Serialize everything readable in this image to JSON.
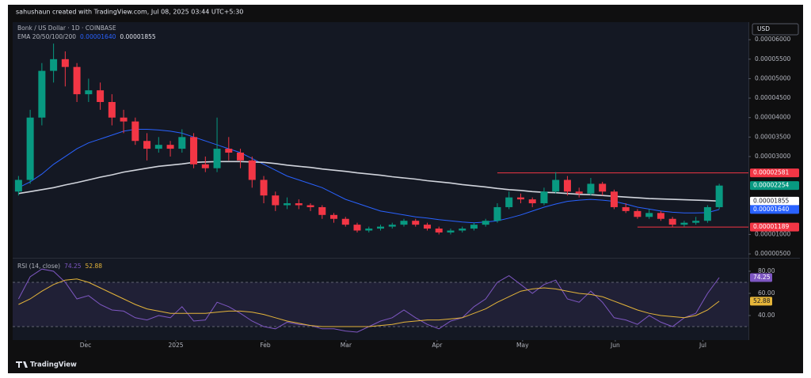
{
  "header": "sahushaun created with TradingView.com, Jul 08, 2025 03:44 UTC+5:30",
  "footer": "TradingView",
  "chart_data": {
    "type": "candlestick",
    "title": "Bonk / US Dollar · 1D · COINBASE",
    "indicator": "EMA 20/50/100/200",
    "currency": "USD",
    "up_color": "#089981",
    "down_color": "#f23645",
    "grid": false,
    "xlim": [
      -0.5,
      62.5
    ],
    "ylim": [
      4.2e-06,
      6.41e-05
    ],
    "yticks": [
      {
        "value": 6e-05,
        "label": "0.00006000"
      },
      {
        "value": 5.5e-05,
        "label": "0.00005500"
      },
      {
        "value": 5e-05,
        "label": "0.00005000"
      },
      {
        "value": 4.5e-05,
        "label": "0.00004500"
      },
      {
        "value": 4e-05,
        "label": "0.00004000"
      },
      {
        "value": 3.5e-05,
        "label": "0.00003500"
      },
      {
        "value": 3e-05,
        "label": "0.00003000"
      },
      {
        "value": 1e-05,
        "label": "0.00001000"
      },
      {
        "value": 5e-06,
        "label": "0.00000500"
      }
    ],
    "xticks": [
      {
        "value": 5.74,
        "label": "Dec"
      },
      {
        "value": 13.47,
        "label": "2025"
      },
      {
        "value": 21.13,
        "label": "Feb"
      },
      {
        "value": 28.04,
        "label": "Mar"
      },
      {
        "value": 35.84,
        "label": "Apr"
      },
      {
        "value": 43.16,
        "label": "May"
      },
      {
        "value": 51.1,
        "label": "Jun"
      },
      {
        "value": 58.6,
        "label": "Jul"
      }
    ],
    "open": [
      2.1e-05,
      2.4e-05,
      4e-05,
      5.2e-05,
      5.5e-05,
      5.3e-05,
      4.6e-05,
      4.7e-05,
      4.4e-05,
      4e-05,
      3.9e-05,
      3.4e-05,
      3.2e-05,
      3.3e-05,
      3.2e-05,
      3.5e-05,
      2.8e-05,
      2.7e-05,
      3.2e-05,
      3.1e-05,
      2.9e-05,
      2.4e-05,
      2e-05,
      1.75e-05,
      1.8e-05,
      1.75e-05,
      1.7e-05,
      1.5e-05,
      1.4e-05,
      1.25e-05,
      1.1e-05,
      1.15e-05,
      1.2e-05,
      1.25e-05,
      1.35e-05,
      1.25e-05,
      1.15e-05,
      1.05e-05,
      1.1e-05,
      1.15e-05,
      1.25e-05,
      1.35e-05,
      1.7e-05,
      1.95e-05,
      1.9e-05,
      1.8e-05,
      2.1e-05,
      2.4e-05,
      2.1e-05,
      2.05e-05,
      2.3e-05,
      2.1e-05,
      1.7e-05,
      1.6e-05,
      1.45e-05,
      1.55e-05,
      1.4e-05,
      1.25e-05,
      1.3e-05,
      1.35e-05,
      1.7e-05
    ],
    "high": [
      2.5e-05,
      4.2e-05,
      5.4e-05,
      5.9e-05,
      5.7e-05,
      5.4e-05,
      5e-05,
      4.9e-05,
      4.6e-05,
      4.2e-05,
      4e-05,
      3.6e-05,
      3.5e-05,
      3.4e-05,
      3.7e-05,
      3.6e-05,
      3e-05,
      4e-05,
      3.5e-05,
      3.2e-05,
      3e-05,
      2.5e-05,
      2.1e-05,
      1.95e-05,
      1.9e-05,
      1.8e-05,
      1.75e-05,
      1.55e-05,
      1.45e-05,
      1.3e-05,
      1.2e-05,
      1.25e-05,
      1.3e-05,
      1.4e-05,
      1.4e-05,
      1.3e-05,
      1.2e-05,
      1.15e-05,
      1.2e-05,
      1.3e-05,
      1.4e-05,
      1.8e-05,
      2.1e-05,
      2.05e-05,
      1.95e-05,
      2.2e-05,
      2.6e-05,
      2.5e-05,
      2.2e-05,
      2.45e-05,
      2.35e-05,
      2.15e-05,
      1.8e-05,
      1.65e-05,
      1.65e-05,
      1.6e-05,
      1.45e-05,
      1.35e-05,
      1.45e-05,
      1.75e-05,
      2.3e-05
    ],
    "low": [
      2e-05,
      2.3e-05,
      3.8e-05,
      4.9e-05,
      4.8e-05,
      4.4e-05,
      4.4e-05,
      4.2e-05,
      3.8e-05,
      3.6e-05,
      3.3e-05,
      2.9e-05,
      3.1e-05,
      3e-05,
      3.1e-05,
      2.7e-05,
      2.6e-05,
      2.6e-05,
      2.9e-05,
      2.7e-05,
      2.2e-05,
      1.8e-05,
      1.6e-05,
      1.65e-05,
      1.65e-05,
      1.6e-05,
      1.4e-05,
      1.3e-05,
      1.2e-05,
      1.05e-05,
      1.05e-05,
      1.1e-05,
      1.15e-05,
      1.2e-05,
      1.2e-05,
      1.1e-05,
      1e-05,
      1e-05,
      1.05e-05,
      1.1e-05,
      1.2e-05,
      1.3e-05,
      1.65e-05,
      1.8e-05,
      1.7e-05,
      1.75e-05,
      2.05e-05,
      2e-05,
      1.95e-05,
      2e-05,
      2e-05,
      1.65e-05,
      1.55e-05,
      1.4e-05,
      1.4e-05,
      1.35e-05,
      1.19e-05,
      1.2e-05,
      1.25e-05,
      1.3e-05,
      1.65e-05
    ],
    "close": [
      2.4e-05,
      4e-05,
      5.2e-05,
      5.5e-05,
      5.3e-05,
      4.6e-05,
      4.7e-05,
      4.4e-05,
      4e-05,
      3.9e-05,
      3.4e-05,
      3.2e-05,
      3.3e-05,
      3.2e-05,
      3.5e-05,
      2.8e-05,
      2.7e-05,
      3.2e-05,
      3.1e-05,
      2.9e-05,
      2.4e-05,
      2e-05,
      1.75e-05,
      1.8e-05,
      1.75e-05,
      1.7e-05,
      1.5e-05,
      1.4e-05,
      1.25e-05,
      1.1e-05,
      1.15e-05,
      1.2e-05,
      1.25e-05,
      1.35e-05,
      1.25e-05,
      1.15e-05,
      1.05e-05,
      1.1e-05,
      1.15e-05,
      1.25e-05,
      1.35e-05,
      1.7e-05,
      1.95e-05,
      1.9e-05,
      1.8e-05,
      2.1e-05,
      2.4e-05,
      2.1e-05,
      2.05e-05,
      2.3e-05,
      2.1e-05,
      1.7e-05,
      1.6e-05,
      1.45e-05,
      1.55e-05,
      1.4e-05,
      1.25e-05,
      1.3e-05,
      1.35e-05,
      1.7e-05,
      2.254e-05
    ],
    "series": [
      {
        "color": "#2962ff",
        "values": [
          2.2e-05,
          2.35e-05,
          2.55e-05,
          2.8e-05,
          3e-05,
          3.2e-05,
          3.35e-05,
          3.45e-05,
          3.55e-05,
          3.65e-05,
          3.7e-05,
          3.7e-05,
          3.68e-05,
          3.65e-05,
          3.6e-05,
          3.5e-05,
          3.4e-05,
          3.3e-05,
          3.2e-05,
          3.1e-05,
          2.95e-05,
          2.8e-05,
          2.65e-05,
          2.5e-05,
          2.4e-05,
          2.3e-05,
          2.2e-05,
          2.05e-05,
          1.9e-05,
          1.8e-05,
          1.7e-05,
          1.6e-05,
          1.55e-05,
          1.5e-05,
          1.45e-05,
          1.42e-05,
          1.38e-05,
          1.35e-05,
          1.32e-05,
          1.3e-05,
          1.32e-05,
          1.35e-05,
          1.42e-05,
          1.5e-05,
          1.6e-05,
          1.7e-05,
          1.78e-05,
          1.85e-05,
          1.88e-05,
          1.9e-05,
          1.88e-05,
          1.85e-05,
          1.78e-05,
          1.7e-05,
          1.65e-05,
          1.6e-05,
          1.57e-05,
          1.55e-05,
          1.55e-05,
          1.56e-05,
          1.64e-05
        ]
      },
      {
        "color": "#d1d4dc",
        "values": [
          2.05e-05,
          2.1e-05,
          2.15e-05,
          2.2e-05,
          2.27e-05,
          2.33e-05,
          2.4e-05,
          2.47e-05,
          2.53e-05,
          2.6e-05,
          2.65e-05,
          2.7e-05,
          2.75e-05,
          2.78e-05,
          2.81e-05,
          2.85e-05,
          2.86e-05,
          2.87e-05,
          2.87e-05,
          2.87e-05,
          2.86e-05,
          2.85e-05,
          2.82e-05,
          2.78e-05,
          2.75e-05,
          2.72e-05,
          2.68e-05,
          2.65e-05,
          2.62e-05,
          2.58e-05,
          2.55e-05,
          2.52e-05,
          2.48e-05,
          2.45e-05,
          2.42e-05,
          2.38e-05,
          2.35e-05,
          2.32e-05,
          2.28e-05,
          2.25e-05,
          2.22e-05,
          2.18e-05,
          2.15e-05,
          2.13e-05,
          2.1e-05,
          2.08e-05,
          2.07e-05,
          2.05e-05,
          2.03e-05,
          2.02e-05,
          2e-05,
          1.98e-05,
          1.96e-05,
          1.94e-05,
          1.92e-05,
          1.91e-05,
          1.9e-05,
          1.89e-05,
          1.88e-05,
          1.87e-05,
          1.855e-05
        ]
      }
    ],
    "levels": [
      {
        "value": 2.581e-05,
        "label": "0.00002581",
        "color": "#f23645",
        "text_color": "#ffffff",
        "from": 41
      },
      {
        "value": 2.254e-05,
        "label": "0.00002254",
        "color": "#089981",
        "text_color": "#ffffff"
      },
      {
        "value": 1.855e-05,
        "label": "0.00001855",
        "color": "#ffffff",
        "text_color": "#131722"
      },
      {
        "value": 1.64e-05,
        "label": "0.00001640",
        "color": "#2962ff",
        "text_color": "#ffffff"
      },
      {
        "value": 1.189e-05,
        "label": "0.00001189",
        "color": "#f23645",
        "text_color": "#ffffff",
        "from": 53
      }
    ],
    "rsi": {
      "title": "RSI (14, close)",
      "ylim": [
        21.4,
        90.7
      ],
      "yticks": [
        {
          "value": 80,
          "label": "80.00"
        },
        {
          "value": 60,
          "label": "60.00"
        },
        {
          "value": 40,
          "label": "40.00"
        }
      ],
      "band": [
        30,
        70
      ],
      "series": [
        {
          "color": "#7e57c2",
          "values": [
            55,
            75,
            82,
            80,
            70,
            55,
            58,
            50,
            45,
            44,
            38,
            36,
            40,
            38,
            48,
            35,
            36,
            52,
            48,
            42,
            35,
            30,
            28,
            34,
            32,
            31,
            28,
            28,
            26,
            25,
            30,
            35,
            38,
            45,
            38,
            32,
            28,
            35,
            38,
            48,
            55,
            70,
            76,
            68,
            60,
            68,
            72,
            55,
            52,
            62,
            52,
            38,
            36,
            32,
            40,
            34,
            30,
            38,
            42,
            60,
            74.25
          ]
        },
        {
          "color": "#e5b53a",
          "values": [
            50,
            55,
            62,
            68,
            72,
            73,
            70,
            65,
            60,
            55,
            50,
            46,
            44,
            42,
            42,
            42,
            42,
            43,
            44,
            44,
            43,
            41,
            38,
            35,
            33,
            31,
            30,
            30,
            30,
            30,
            30,
            31,
            32,
            34,
            35,
            36,
            36,
            37,
            38,
            42,
            46,
            52,
            57,
            62,
            64,
            65,
            64,
            62,
            60,
            59,
            57,
            53,
            49,
            45,
            42,
            40,
            39,
            38,
            40,
            45,
            52.88
          ]
        }
      ]
    }
  }
}
